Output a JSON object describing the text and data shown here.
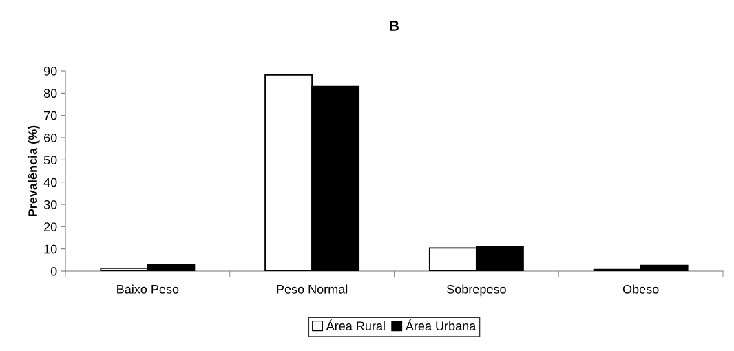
{
  "chart_data": {
    "type": "bar",
    "title": "B",
    "ylabel": "Prevalência (%)",
    "categories": [
      "Baixo Peso",
      "Peso Normal",
      "Sobrepeso",
      "Obeso"
    ],
    "series": [
      {
        "name": "Área Rural",
        "color": "#ffffff",
        "values": [
          1.3,
          88.2,
          10.4,
          0.7
        ]
      },
      {
        "name": "Área Urbana",
        "color": "#000000",
        "values": [
          3.0,
          83.0,
          11.2,
          2.6
        ]
      }
    ],
    "ylim": [
      0,
      90
    ],
    "yticks": [
      0,
      10,
      20,
      30,
      40,
      50,
      60,
      70,
      80,
      90
    ],
    "grid": false,
    "legend": "bottom"
  }
}
